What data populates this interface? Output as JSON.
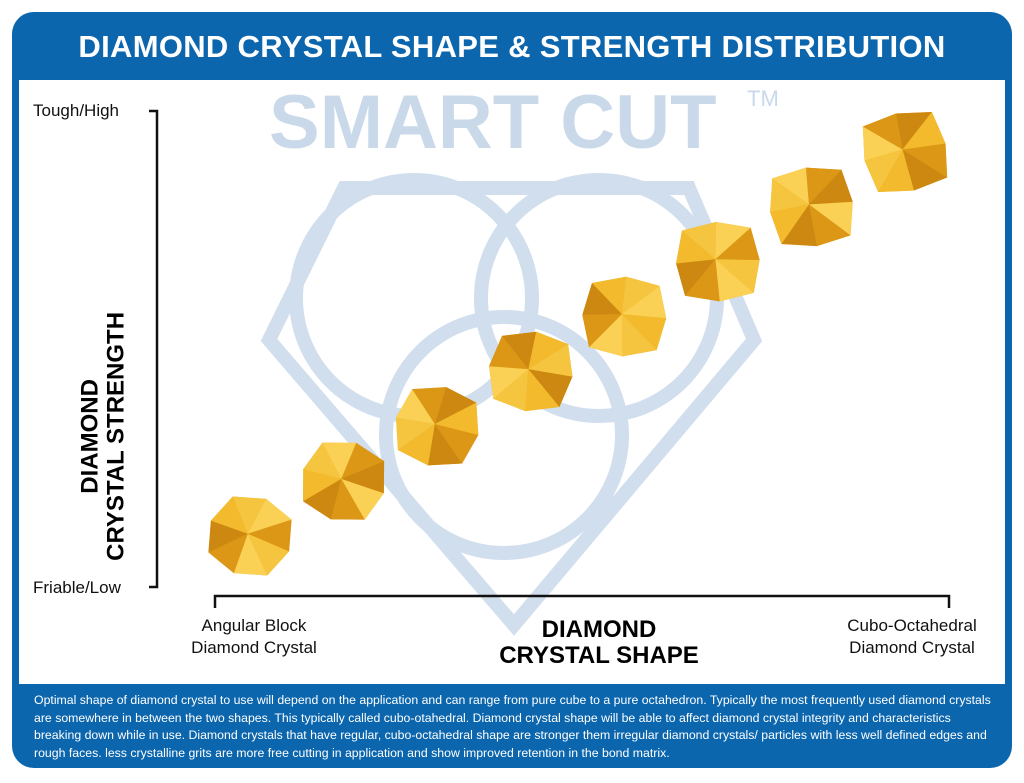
{
  "title": "DIAMOND CRYSTAL SHAPE & STRENGTH DISTRIBUTION",
  "watermark": {
    "brand": "SMART CUT",
    "tm": "TM"
  },
  "y_axis": {
    "title_line1": "DIAMOND",
    "title_line2": "CRYSTAL STRENGTH",
    "top_label": "Tough/High",
    "bottom_label": "Friable/Low"
  },
  "x_axis": {
    "title_line1": "DIAMOND",
    "title_line2": "CRYSTAL SHAPE",
    "left_label_line1": "Angular Block",
    "left_label_line2": "Diamond Crystal",
    "right_label_line1": "Cubo-Octahedral",
    "right_label_line2": "Diamond Crystal"
  },
  "crystal_count": 8,
  "description": "Optimal shape of diamond crystal to use will depend on the application and can range from pure cube to a pure octahedron. Typically the most frequently used diamond crystals are somewhere in between the two shapes. This typically called cubo-otahedral. Diamond crystal shape will be able to affect diamond crystal integrity and characteristics breaking down while in use. Diamond crystals that have regular, cubo-octahedral shape are stronger them irregular diamond crystals/ particles with less well defined edges and rough faces. less crystalline grits are more free cutting in application and show improved retention in the bond matrix.",
  "colors": {
    "brand_blue": "#0b66ae",
    "crystal_gold": "#f0b429",
    "watermark": "#c9d9ea"
  }
}
